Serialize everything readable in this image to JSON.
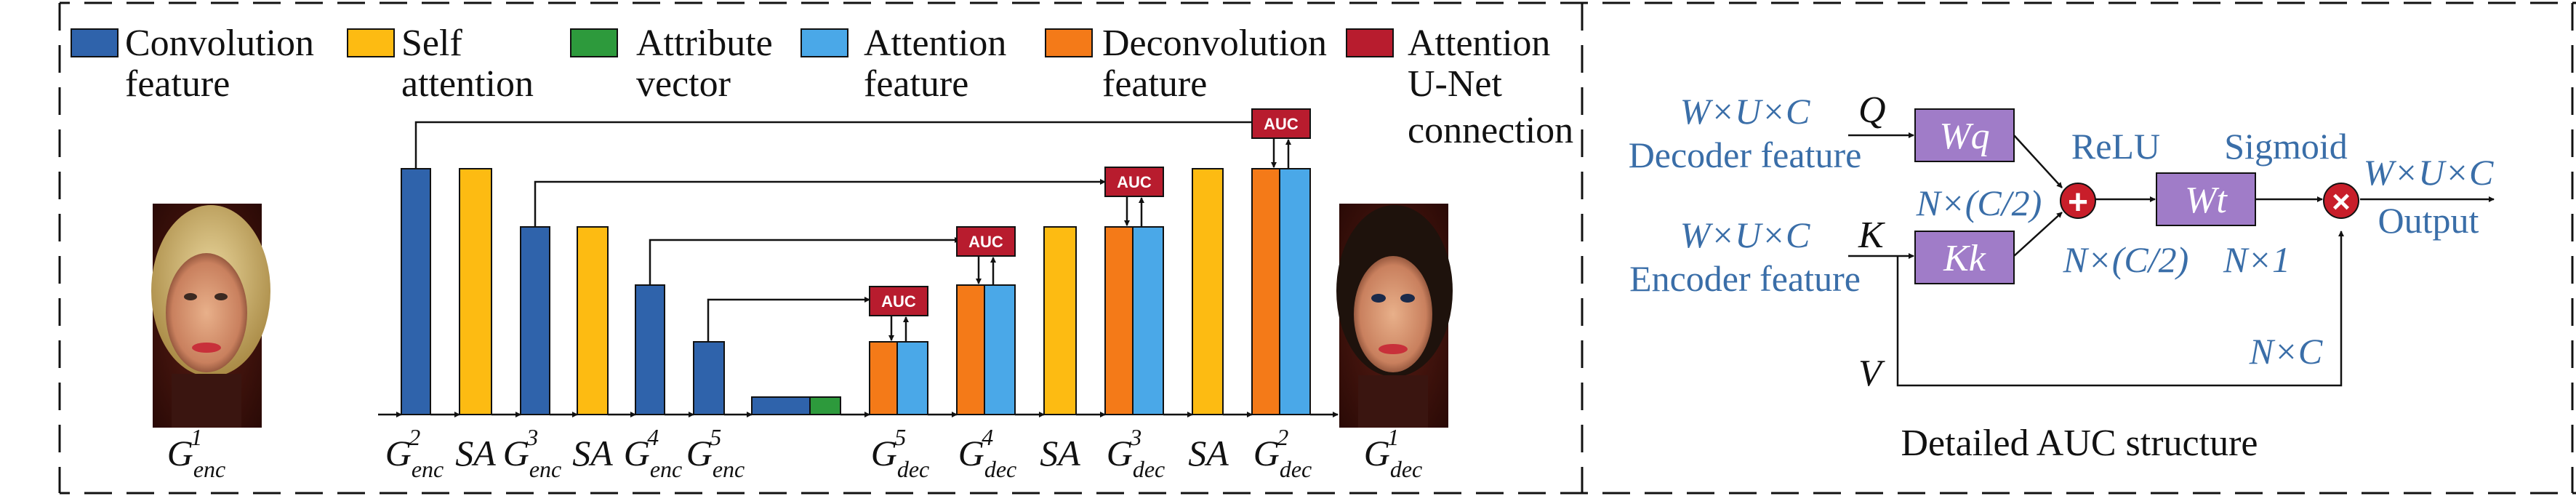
{
  "legend": {
    "conv": {
      "line1": "Convolution",
      "line2": "feature",
      "color": "#2f63ab"
    },
    "sa": {
      "line1": "Self",
      "line2": "attention",
      "color": "#fdbb12"
    },
    "attr": {
      "line1": "Attribute",
      "line2": "vector",
      "color": "#2d9a3c"
    },
    "att": {
      "line1": "Attention",
      "line2": "feature",
      "color": "#4aa8e8"
    },
    "deconv": {
      "line1": "Deconvolution",
      "line2": "feature",
      "color": "#f47a18"
    },
    "unet": {
      "line1": "Attention",
      "line2": "U-Net",
      "line3": "connection",
      "color": "#b81c2e"
    }
  },
  "auc_label": "AUC",
  "labels": {
    "G": "G",
    "SA": "SA",
    "enc": "enc",
    "dec": "dec",
    "s1": "1",
    "s2": "2",
    "s3": "3",
    "s4": "4",
    "s5": "5"
  },
  "auc_detail": {
    "caption": "Detailed AUC structure",
    "dims_wuc": "W×U×C",
    "decoder_feature": "Decoder feature",
    "encoder_feature": "Encoder feature",
    "Q": "Q",
    "K": "K",
    "V": "V",
    "Wq": "Wq",
    "Kk": "Kk",
    "Wt": "Wt",
    "relu": "ReLU",
    "sigmoid": "Sigmoid",
    "n_c2_a": "N×(C/2)",
    "n_c2_b": "N×(C/2)",
    "n_1": "N×1",
    "n_c": "N×C",
    "output": "Output",
    "plus": "+",
    "times": "×",
    "box_color": "#a07cc8",
    "op_color": "#c81e2a"
  }
}
